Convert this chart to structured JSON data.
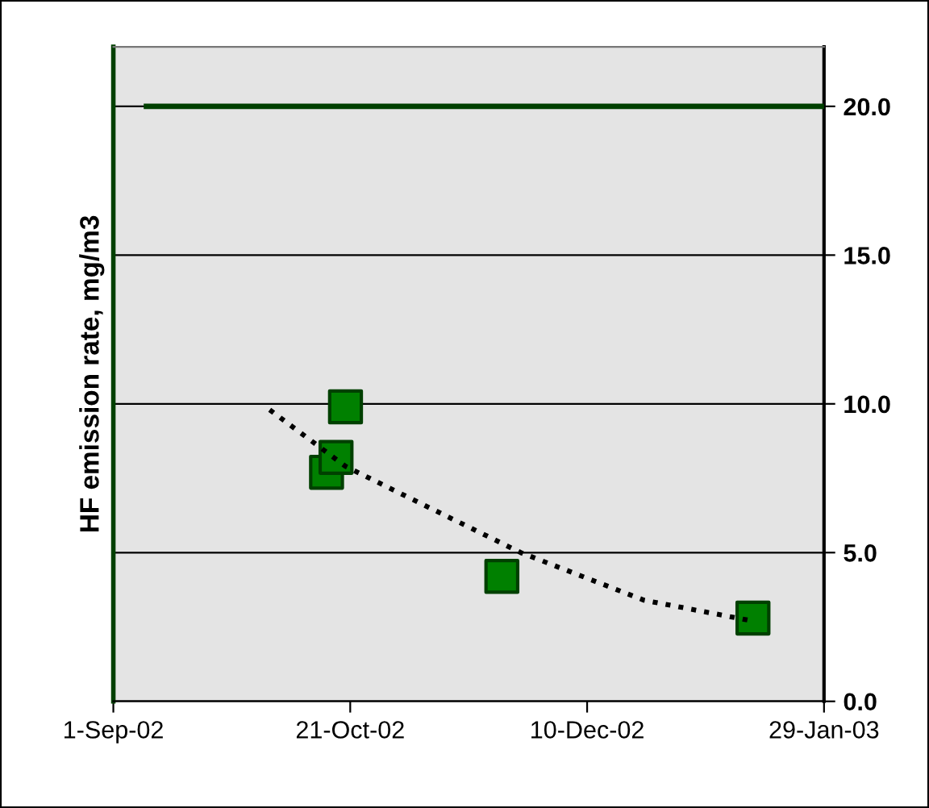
{
  "chart_data": {
    "type": "scatter",
    "ylabel": "HF emission rate, mg/m3",
    "x": [
      "2002-10-16",
      "2002-10-18",
      "2002-10-20",
      "2002-11-22",
      "2003-01-14"
    ],
    "series": [
      {
        "color": "#008000",
        "marker": "square",
        "values": [
          7.7,
          8.2,
          9.9,
          4.2,
          2.8
        ]
      },
      {
        "type": "line",
        "color": "#000000",
        "line_style": "dotted",
        "marker": "none",
        "x": [
          "2002-10-04",
          "2002-10-20",
          "2002-11-03",
          "2002-11-26",
          "2002-12-22",
          "2003-01-14"
        ],
        "values": [
          9.8,
          7.9,
          6.8,
          5.0,
          3.4,
          2.7
        ]
      },
      {
        "type": "line",
        "color": "#004000",
        "line_style": "solid",
        "marker": "none",
        "x": [
          "2002-09-08",
          "2003-01-29"
        ],
        "values": [
          20.0,
          20.0
        ]
      }
    ],
    "xlim": [
      "2002-09-01",
      "2003-01-29"
    ],
    "xticks": [
      {
        "value": "2002-09-01",
        "label": "1-Sep-02"
      },
      {
        "value": "2002-10-21",
        "label": "21-Oct-02"
      },
      {
        "value": "2002-12-10",
        "label": "10-Dec-02"
      },
      {
        "value": "2003-01-29",
        "label": "29-Jan-03"
      }
    ],
    "ylim": [
      0,
      22
    ],
    "yticks": [
      {
        "value": 0,
        "label": "0.0"
      },
      {
        "value": 5,
        "label": "5.0"
      },
      {
        "value": 10,
        "label": "10.0"
      },
      {
        "value": 15,
        "label": "15.0"
      },
      {
        "value": 20,
        "label": "20.0"
      }
    ],
    "grid": "y",
    "legend": false
  }
}
